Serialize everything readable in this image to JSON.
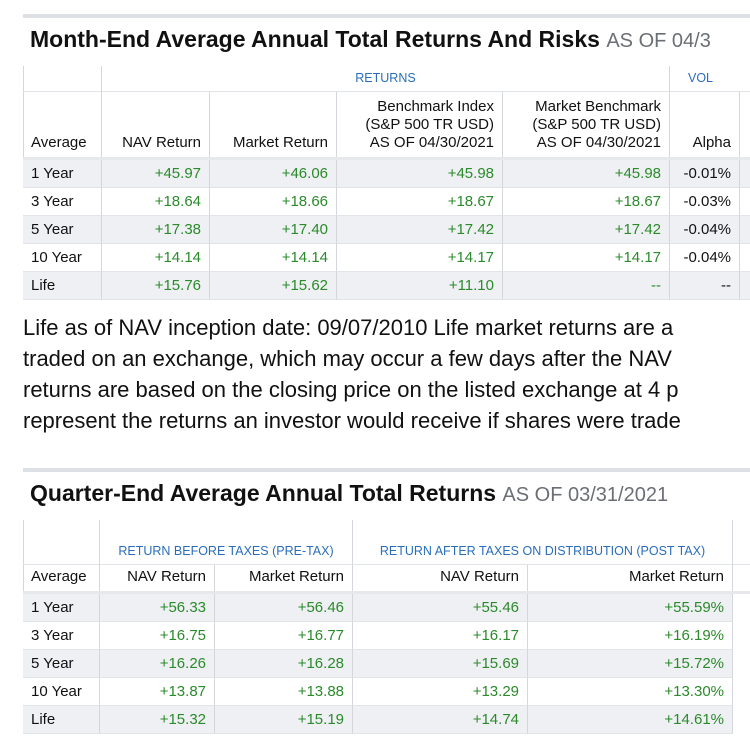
{
  "section1": {
    "title": "Month-End Average Annual Total Returns And Risks",
    "as_of": "AS OF 04/3",
    "table": {
      "group_headers": [
        "RETURNS",
        "VOL"
      ],
      "columns": [
        [
          "Average"
        ],
        [
          "NAV Return"
        ],
        [
          "Market Return"
        ],
        [
          "Benchmark Index",
          "(S&P 500 TR USD)",
          "AS OF 04/30/2021"
        ],
        [
          "Market Benchmark",
          "(S&P 500 TR USD)",
          "AS OF 04/30/2021"
        ],
        [
          "Alpha"
        ]
      ],
      "rows": [
        [
          "1 Year",
          "+45.97",
          "+46.06",
          "+45.98",
          "+45.98",
          "-0.01%"
        ],
        [
          "3 Year",
          "+18.64",
          "+18.66",
          "+18.67",
          "+18.67",
          "-0.03%"
        ],
        [
          "5 Year",
          "+17.38",
          "+17.40",
          "+17.42",
          "+17.42",
          "-0.04%"
        ],
        [
          "10 Year",
          "+14.14",
          "+14.14",
          "+14.17",
          "+14.17",
          "-0.04%"
        ],
        [
          "Life",
          "+15.76",
          "+15.62",
          "+11.10",
          "--",
          "--"
        ]
      ]
    }
  },
  "note": [
    "Life as of NAV inception date: 09/07/2010   Life market returns are a",
    "traded on an exchange, which may occur a few days after the NAV",
    "returns are based on the closing price on the listed exchange at 4 p",
    "represent the returns an investor would receive if shares were trade"
  ],
  "section2": {
    "title": "Quarter-End Average Annual Total Returns",
    "as_of": "AS OF 03/31/2021",
    "table": {
      "group_headers": [
        "RETURN BEFORE TAXES (PRE-TAX)",
        "RETURN AFTER TAXES ON DISTRIBUTION (POST TAX)"
      ],
      "columns": [
        [
          "Average"
        ],
        [
          "NAV Return"
        ],
        [
          "Market Return"
        ],
        [
          "NAV Return"
        ],
        [
          "Market Return"
        ]
      ],
      "rows": [
        [
          "1 Year",
          "+56.33",
          "+56.46",
          "+55.46",
          "+55.59%"
        ],
        [
          "3 Year",
          "+16.75",
          "+16.77",
          "+16.17",
          "+16.19%"
        ],
        [
          "5 Year",
          "+16.26",
          "+16.28",
          "+15.69",
          "+15.72%"
        ],
        [
          "10 Year",
          "+13.87",
          "+13.88",
          "+13.29",
          "+13.30%"
        ],
        [
          "Life",
          "+15.32",
          "+15.19",
          "+14.74",
          "+14.61%"
        ]
      ]
    }
  }
}
